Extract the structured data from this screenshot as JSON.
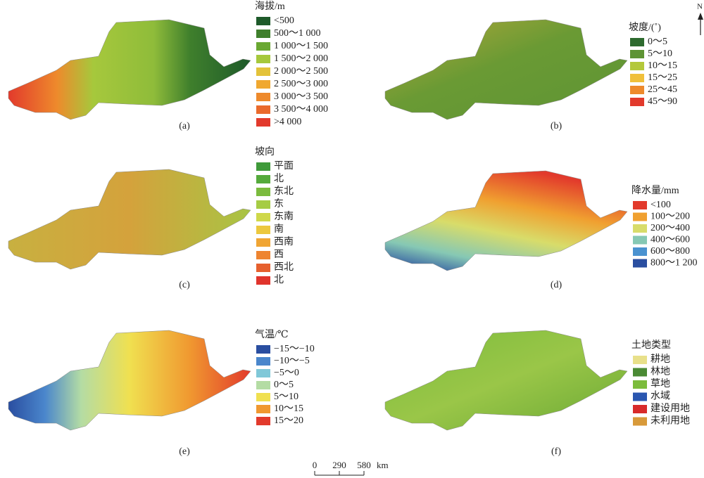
{
  "panels": [
    {
      "caption": "(a)",
      "legend_title": "海拔/m",
      "items": [
        {
          "label": "<500",
          "color": "#1e5a2a"
        },
        {
          "label": "500～1 000",
          "color": "#3f7f2c"
        },
        {
          "label": "1 000～1 500",
          "color": "#6aa832"
        },
        {
          "label": "1 500～2 000",
          "color": "#a6c83c"
        },
        {
          "label": "2 000～2 500",
          "color": "#e3c23a"
        },
        {
          "label": "2 500～3 000",
          "color": "#f0a830"
        },
        {
          "label": "3 000～3 500",
          "color": "#ee8a2c"
        },
        {
          "label": "3 500～4 000",
          "color": "#ea6a2c"
        },
        {
          "label": ">4 000",
          "color": "#e23a2c"
        }
      ]
    },
    {
      "caption": "(b)",
      "legend_title": "坡度/(˚)",
      "items": [
        {
          "label": "0～5",
          "color": "#2d6a2e"
        },
        {
          "label": "5～10",
          "color": "#5e9434"
        },
        {
          "label": "10～15",
          "color": "#b4c83a"
        },
        {
          "label": "15～25",
          "color": "#f0c03a"
        },
        {
          "label": "25～45",
          "color": "#ee8a2c"
        },
        {
          "label": "45～90",
          "color": "#e23a2c"
        }
      ]
    },
    {
      "caption": "(c)",
      "legend_title": "坡向",
      "items": [
        {
          "label": "平面",
          "color": "#3f9a3a"
        },
        {
          "label": "北",
          "color": "#55aa3c"
        },
        {
          "label": "东北",
          "color": "#7bbb3e"
        },
        {
          "label": "东",
          "color": "#a6cc44"
        },
        {
          "label": "东南",
          "color": "#cfd84a"
        },
        {
          "label": "南",
          "color": "#ecc83e"
        },
        {
          "label": "西南",
          "color": "#f0a534"
        },
        {
          "label": "西",
          "color": "#ee8430"
        },
        {
          "label": "西北",
          "color": "#e6602e"
        },
        {
          "label": "北",
          "color": "#e0342c"
        }
      ]
    },
    {
      "caption": "(d)",
      "legend_title": "降水量/mm",
      "items": [
        {
          "label": "<100",
          "color": "#e23a2c"
        },
        {
          "label": "100～200",
          "color": "#f0a030"
        },
        {
          "label": "200～400",
          "color": "#d8dc6a"
        },
        {
          "label": "400～600",
          "color": "#86c8b4"
        },
        {
          "label": "600～800",
          "color": "#4a92d0"
        },
        {
          "label": "800～1 200",
          "color": "#2a4ea0"
        }
      ]
    },
    {
      "caption": "(e)",
      "legend_title": "气温/℃",
      "items": [
        {
          "label": "−15～−10",
          "color": "#2a4ea0"
        },
        {
          "label": "−10～−5",
          "color": "#4a86cc"
        },
        {
          "label": "−5～0",
          "color": "#80c8d8"
        },
        {
          "label": "0～5",
          "color": "#b4dca4"
        },
        {
          "label": "5～10",
          "color": "#f0e050"
        },
        {
          "label": "10～15",
          "color": "#f09830"
        },
        {
          "label": "15～20",
          "color": "#e23a2c"
        }
      ]
    },
    {
      "caption": "(f)",
      "legend_title": "土地类型",
      "items": [
        {
          "label": "耕地",
          "color": "#e8e08a"
        },
        {
          "label": "林地",
          "color": "#4a8a34"
        },
        {
          "label": "草地",
          "color": "#7cbc3c"
        },
        {
          "label": "水域",
          "color": "#2a56b0"
        },
        {
          "label": "建设用地",
          "color": "#d82a2a"
        },
        {
          "label": "未利用地",
          "color": "#d89a3a"
        }
      ]
    }
  ],
  "north": "N",
  "scale_bar": {
    "ticks": [
      0,
      290,
      580
    ],
    "unit": "km"
  }
}
